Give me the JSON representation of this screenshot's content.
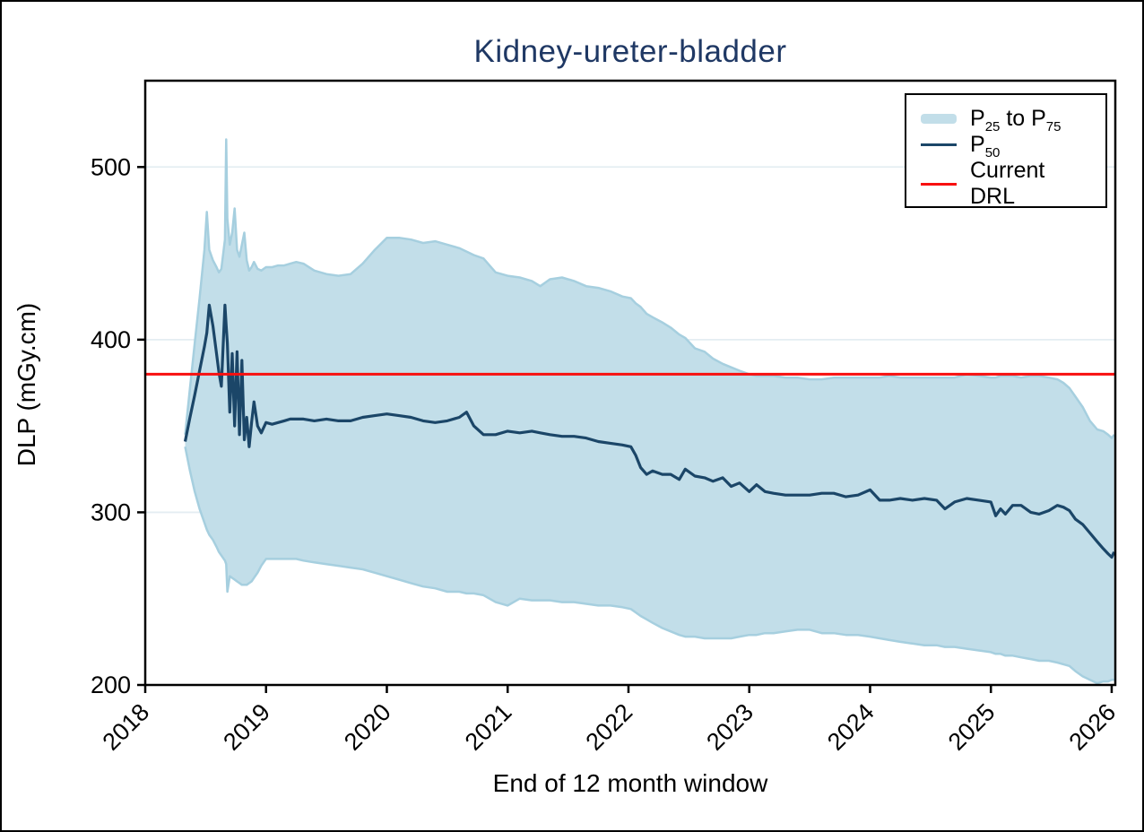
{
  "colors": {
    "title": "#1f3864",
    "band_fill": "#c2dee9",
    "band_edge": "#a6cfdf",
    "median_line": "#1b4668",
    "drl_line": "#f80f0f",
    "gridline": "#e4edf2",
    "axis": "#000000",
    "tick_label": "#000000"
  },
  "legend": {
    "items": [
      {
        "swatch": "band",
        "color": "#c2dee9",
        "name": "p25-p75-band",
        "parts": [
          {
            "t": "P"
          },
          {
            "t": "25",
            "sub": true
          },
          {
            "t": " to P"
          },
          {
            "t": "75",
            "sub": true
          }
        ]
      },
      {
        "swatch": "line",
        "color": "#1b4668",
        "name": "p50-median",
        "parts": [
          {
            "t": "P"
          },
          {
            "t": "50",
            "sub": true
          }
        ]
      },
      {
        "swatch": "line",
        "color": "#f80f0f",
        "name": "current-drl",
        "parts": [
          {
            "t": "Current DRL"
          }
        ]
      }
    ]
  },
  "chart_data": {
    "type": "line",
    "title": "Kidney-ureter-bladder",
    "xlabel": "End of 12 month window",
    "ylabel": "DLP (mGy.cm)",
    "xlim": [
      2018,
      2026.03
    ],
    "ylim": [
      200,
      550
    ],
    "xticks": [
      2018,
      2019,
      2020,
      2021,
      2022,
      2023,
      2024,
      2025,
      2026
    ],
    "yticks": [
      200,
      300,
      400,
      500
    ],
    "grid_y": [
      300,
      400,
      500
    ],
    "grid": "horizontal-only",
    "legend_position": "top-right-inside",
    "drl": {
      "label": "Current DRL",
      "value": 380
    },
    "x": [
      2018.33,
      2018.37,
      2018.41,
      2018.45,
      2018.49,
      2018.51,
      2018.53,
      2018.56,
      2018.59,
      2018.61,
      2018.63,
      2018.66,
      2018.67,
      2018.68,
      2018.7,
      2018.72,
      2018.74,
      2018.76,
      2018.78,
      2018.8,
      2018.82,
      2018.84,
      2018.86,
      2018.88,
      2018.9,
      2018.93,
      2018.96,
      2019.0,
      2019.05,
      2019.1,
      2019.15,
      2019.2,
      2019.25,
      2019.31,
      2019.4,
      2019.5,
      2019.6,
      2019.7,
      2019.8,
      2019.9,
      2020.0,
      2020.1,
      2020.2,
      2020.3,
      2020.4,
      2020.5,
      2020.6,
      2020.66,
      2020.72,
      2020.8,
      2020.9,
      2021.0,
      2021.1,
      2021.2,
      2021.27,
      2021.35,
      2021.45,
      2021.55,
      2021.65,
      2021.75,
      2021.85,
      2021.95,
      2022.02,
      2022.06,
      2022.1,
      2022.15,
      2022.2,
      2022.28,
      2022.35,
      2022.42,
      2022.47,
      2022.55,
      2022.63,
      2022.7,
      2022.78,
      2022.85,
      2022.92,
      2023.0,
      2023.06,
      2023.13,
      2023.2,
      2023.3,
      2023.4,
      2023.5,
      2023.6,
      2023.7,
      2023.8,
      2023.9,
      2024.0,
      2024.08,
      2024.16,
      2024.25,
      2024.35,
      2024.45,
      2024.55,
      2024.62,
      2024.7,
      2024.8,
      2024.9,
      2025.0,
      2025.04,
      2025.08,
      2025.12,
      2025.18,
      2025.25,
      2025.33,
      2025.4,
      2025.48,
      2025.55,
      2025.6,
      2025.65,
      2025.7,
      2025.76,
      2025.82,
      2025.88,
      2025.93,
      2025.97,
      2026.0,
      2026.02
    ],
    "series": [
      {
        "name": "P25",
        "values": [
          338,
          324,
          312,
          302,
          294,
          290,
          287,
          284,
          280,
          277,
          275,
          272,
          270,
          254,
          263,
          262,
          261,
          260,
          259,
          258,
          258,
          258,
          259,
          260,
          262,
          265,
          269,
          273,
          273,
          273,
          273,
          273,
          273,
          272,
          271,
          270,
          269,
          268,
          267,
          265,
          263,
          261,
          259,
          257,
          256,
          254,
          254,
          253,
          253,
          252,
          248,
          246,
          250,
          249,
          249,
          249,
          248,
          248,
          247,
          246,
          246,
          245,
          244,
          242,
          240,
          238,
          236,
          233,
          231,
          229,
          228,
          228,
          227,
          227,
          227,
          227,
          228,
          229,
          229,
          230,
          230,
          231,
          232,
          232,
          230,
          230,
          229,
          229,
          228,
          227,
          226,
          225,
          224,
          223,
          223,
          222,
          222,
          221,
          220,
          219,
          218,
          218,
          217,
          217,
          216,
          215,
          214,
          214,
          213,
          212,
          211,
          208,
          205,
          203,
          201,
          202,
          202,
          203,
          203
        ]
      },
      {
        "name": "P50",
        "values": [
          341,
          355,
          368,
          382,
          396,
          404,
          420,
          408,
          392,
          381,
          373,
          420,
          408,
          398,
          358,
          392,
          350,
          393,
          345,
          388,
          342,
          355,
          338,
          352,
          364,
          350,
          346,
          352,
          351,
          352,
          353,
          354,
          354,
          354,
          353,
          354,
          353,
          353,
          355,
          356,
          357,
          356,
          355,
          353,
          352,
          353,
          355,
          358,
          350,
          345,
          345,
          347,
          346,
          347,
          346,
          345,
          344,
          344,
          343,
          341,
          340,
          339,
          338,
          333,
          326,
          322,
          324,
          322,
          322,
          319,
          325,
          321,
          320,
          318,
          320,
          315,
          317,
          312,
          316,
          312,
          311,
          310,
          310,
          310,
          311,
          311,
          309,
          310,
          313,
          307,
          307,
          308,
          307,
          308,
          307,
          302,
          306,
          308,
          307,
          306,
          298,
          302,
          299,
          304,
          304,
          300,
          299,
          301,
          304,
          303,
          301,
          296,
          293,
          288,
          283,
          279,
          276,
          274,
          277
        ]
      },
      {
        "name": "P75",
        "values": [
          345,
          372,
          398,
          424,
          452,
          474,
          452,
          446,
          442,
          439,
          441,
          458,
          516,
          470,
          455,
          462,
          476,
          452,
          448,
          455,
          462,
          446,
          440,
          442,
          445,
          441,
          440,
          442,
          442,
          443,
          443,
          444,
          445,
          444,
          440,
          438,
          437,
          438,
          444,
          452,
          459,
          459,
          458,
          456,
          457,
          455,
          453,
          451,
          449,
          447,
          439,
          437,
          436,
          434,
          431,
          435,
          436,
          434,
          431,
          430,
          428,
          425,
          424,
          421,
          419,
          415,
          413,
          410,
          407,
          403,
          401,
          395,
          393,
          389,
          386,
          384,
          382,
          380,
          379,
          379,
          379,
          378,
          378,
          377,
          377,
          378,
          378,
          378,
          378,
          378,
          379,
          378,
          378,
          378,
          378,
          378,
          378,
          380,
          379,
          378,
          378,
          379,
          379,
          379,
          378,
          379,
          379,
          378,
          377,
          375,
          372,
          367,
          361,
          353,
          348,
          347,
          345,
          343,
          345
        ]
      }
    ]
  }
}
